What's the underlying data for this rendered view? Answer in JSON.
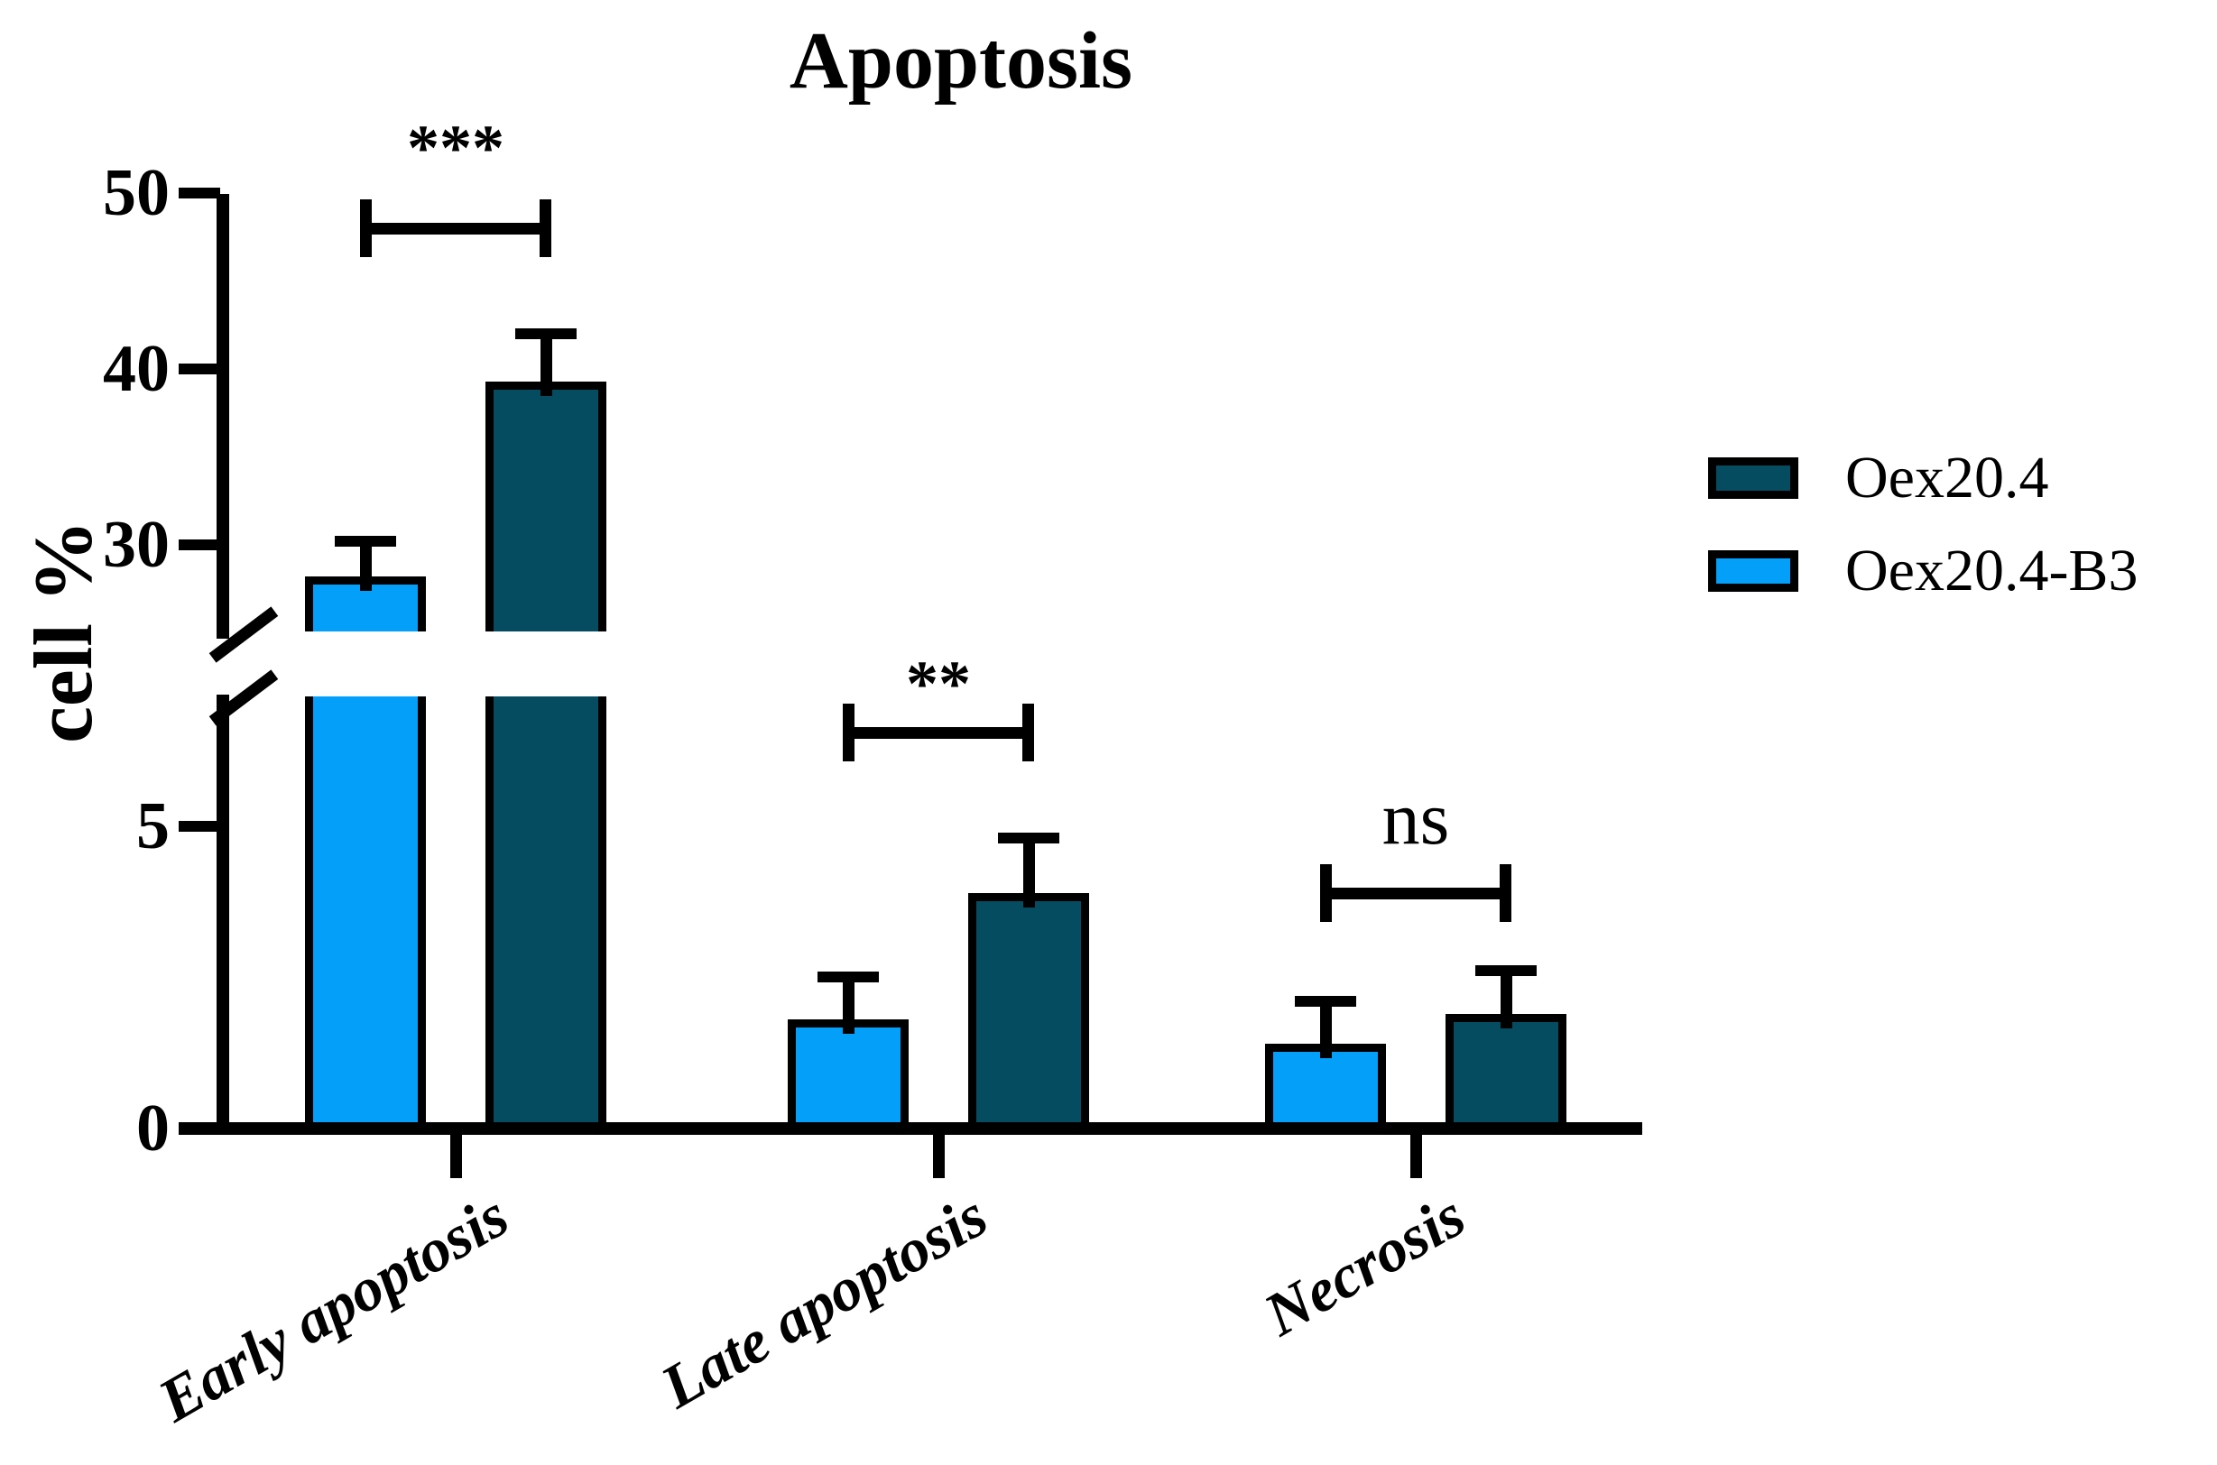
{
  "title": "Apoptosis",
  "y_axis_label": "cell %",
  "legend": [
    {
      "label": "Oex20.4",
      "color": "#054C60"
    },
    {
      "label": "Oex20.4-B3",
      "color": "#039FF8"
    }
  ],
  "chart_data": {
    "type": "bar",
    "title": "Apoptosis",
    "xlabel": "",
    "ylabel": "cell %",
    "categories": [
      "Early apoptosis",
      "Late apoptosis",
      "Necrosis"
    ],
    "series": [
      {
        "name": "Oex20.4-B3",
        "color": "#039FF8",
        "values": [
          28.2,
          1.8,
          1.4
        ],
        "error_top": [
          30.5,
          2.6,
          2.2
        ]
      },
      {
        "name": "Oex20.4",
        "color": "#054C60",
        "values": [
          39.3,
          3.9,
          1.9
        ],
        "error_top": [
          42.3,
          4.9,
          2.7
        ]
      }
    ],
    "significance": [
      {
        "category": "Early apoptosis",
        "label": "***"
      },
      {
        "category": "Late apoptosis",
        "label": "**"
      },
      {
        "category": "Necrosis",
        "label": "ns"
      }
    ],
    "y_ticks_upper": [
      30,
      40,
      50
    ],
    "y_ticks_lower": [
      0,
      5
    ],
    "axis_break": {
      "lower_max": 6.7,
      "upper_min": 26
    },
    "ylim": [
      0,
      50
    ],
    "grid": false,
    "legend_position": "right",
    "bar_colors_outline": "#000000"
  }
}
